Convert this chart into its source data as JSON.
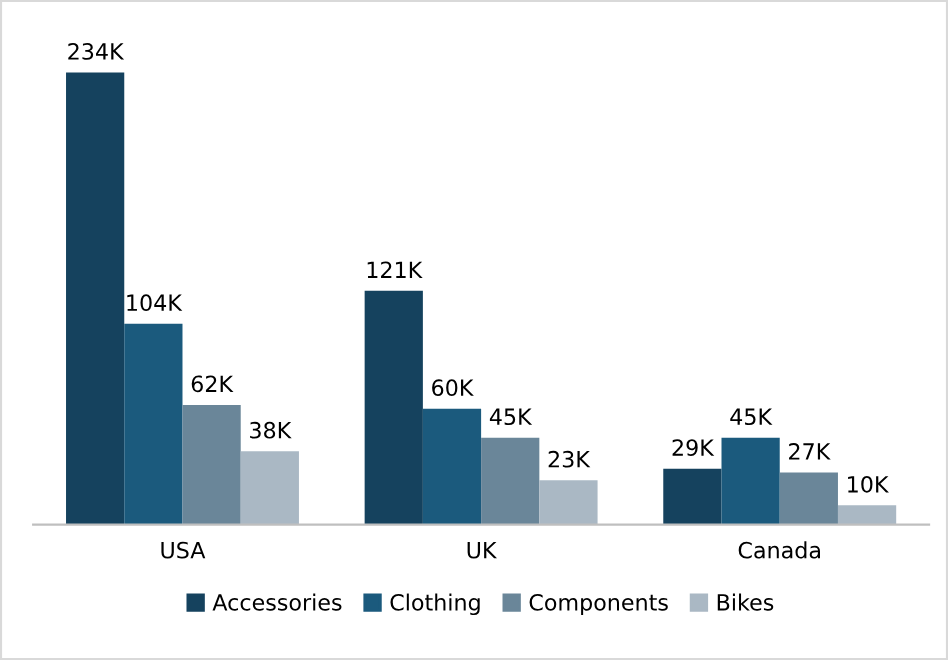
{
  "chart_data": {
    "type": "bar",
    "categories": [
      "USA",
      "UK",
      "Canada"
    ],
    "series": [
      {
        "name": "Accessories",
        "color": "#15425e",
        "values": [
          234,
          121,
          29
        ],
        "value_labels": [
          "234K",
          "121K",
          "29K"
        ]
      },
      {
        "name": "Clothing",
        "color": "#1b5a7d",
        "values": [
          104,
          60,
          45
        ],
        "value_labels": [
          "104K",
          "60K",
          "45K"
        ]
      },
      {
        "name": "Components",
        "color": "#6a8699",
        "values": [
          62,
          45,
          27
        ],
        "value_labels": [
          "62K",
          "45K",
          "27K"
        ]
      },
      {
        "name": "Bikes",
        "color": "#aab8c4",
        "values": [
          38,
          23,
          10
        ],
        "value_labels": [
          "38K",
          "23K",
          "10K"
        ]
      }
    ],
    "legend": "bottom"
  }
}
